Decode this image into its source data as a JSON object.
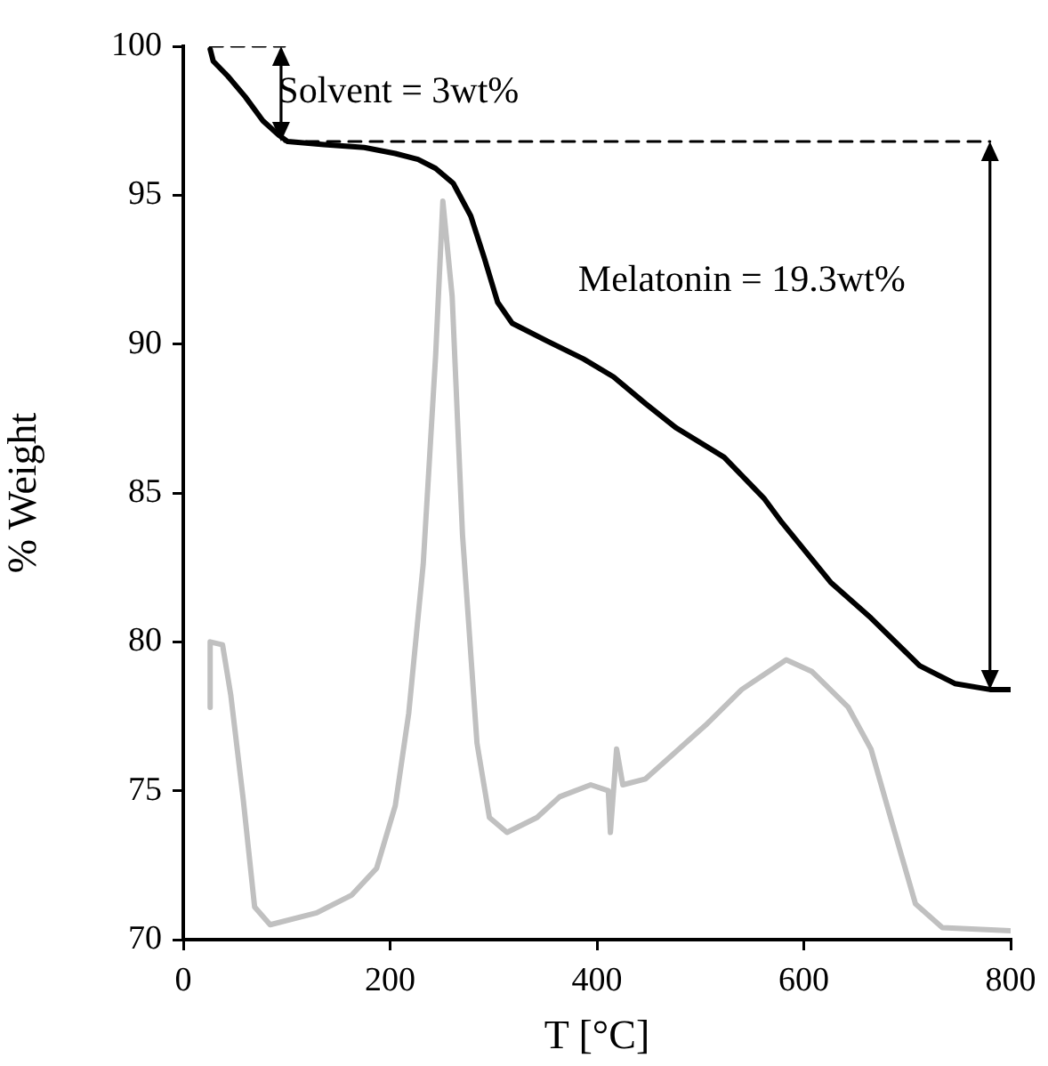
{
  "chart_data": {
    "type": "line",
    "xlabel": "T [°C]",
    "ylabel": "% Weight",
    "xlim": [
      0,
      800
    ],
    "xticks": [
      0,
      200,
      400,
      600,
      800
    ],
    "ylim": [
      70,
      100
    ],
    "yticks": [
      70,
      75,
      80,
      85,
      90,
      95,
      100
    ],
    "grid": false,
    "legend": false,
    "line_style": "solid",
    "series": [
      {
        "color": "#000000",
        "x": [
          26,
          29,
          43,
          60,
          77,
          93,
          101,
          136,
          175,
          205,
          227,
          244,
          261,
          278,
          291,
          304,
          318,
          352,
          387,
          416,
          447,
          476,
          523,
          562,
          579,
          626,
          665,
          712,
          746,
          780,
          800
        ],
        "values": [
          99.9,
          99.5,
          99.0,
          98.3,
          97.5,
          97.0,
          96.8,
          96.7,
          96.6,
          96.4,
          96.2,
          95.9,
          95.4,
          94.3,
          92.9,
          91.4,
          90.7,
          90.1,
          89.5,
          88.9,
          88.0,
          87.2,
          86.2,
          84.8,
          84.0,
          82.0,
          80.8,
          79.2,
          78.6,
          78.4,
          78.4
        ]
      },
      {
        "color": "#c0c0c0",
        "x": [
          26,
          26,
          38,
          46,
          58,
          69,
          84,
          129,
          163,
          187,
          205,
          218,
          232,
          244,
          251,
          260,
          270,
          284,
          296,
          313,
          342,
          364,
          394,
          411,
          413,
          419,
          425,
          447,
          505,
          540,
          583,
          608,
          643,
          665,
          688,
          708,
          734,
          800
        ],
        "values": [
          77.8,
          80.0,
          79.9,
          78.2,
          74.7,
          71.1,
          70.5,
          70.9,
          71.5,
          72.4,
          74.5,
          77.6,
          82.6,
          89.6,
          94.8,
          91.6,
          83.6,
          76.6,
          74.1,
          73.6,
          74.1,
          74.8,
          75.2,
          75.0,
          73.6,
          76.4,
          75.2,
          75.4,
          77.2,
          78.4,
          79.4,
          79.0,
          77.8,
          76.4,
          73.6,
          71.2,
          70.4,
          70.3
        ]
      },
      {
        "color": "#000000",
        "line_style": "dashed",
        "x": [
          26,
          98
        ],
        "values": [
          100,
          100
        ]
      },
      {
        "color": "#000000",
        "line_style": "dashed",
        "x": [
          98,
          780
        ],
        "values": [
          96.8,
          96.8
        ]
      }
    ],
    "annotations": [
      "Solvent = 3wt%",
      "Melatonin = 19.3wt%"
    ]
  }
}
